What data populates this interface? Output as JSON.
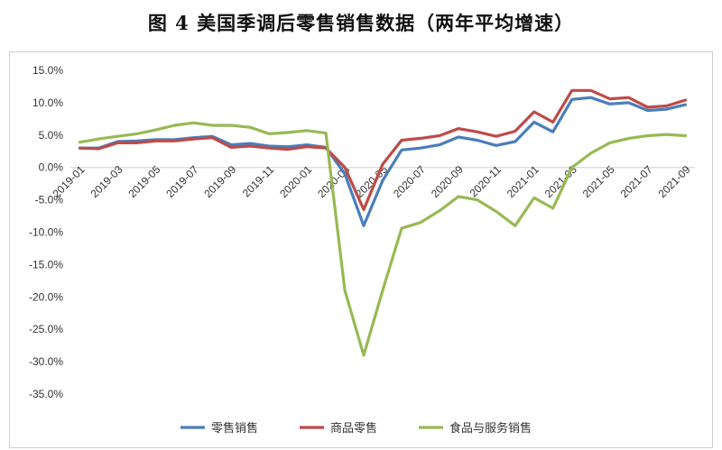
{
  "title": "图 4  美国季调后零售销售数据（两年平均增速）",
  "chart_data": {
    "type": "line",
    "title": "图 4  美国季调后零售销售数据（两年平均增速）",
    "xlabel": "",
    "ylabel": "",
    "ylim": [
      -35,
      15
    ],
    "y_ticks": [
      "15.0%",
      "10.0%",
      "5.0%",
      "0.0%",
      "-5.0%",
      "-10.0%",
      "-15.0%",
      "-20.0%",
      "-25.0%",
      "-30.0%",
      "-35.0%"
    ],
    "x": [
      "2019-01",
      "2019-02",
      "2019-03",
      "2019-04",
      "2019-05",
      "2019-06",
      "2019-07",
      "2019-08",
      "2019-09",
      "2019-10",
      "2019-11",
      "2019-12",
      "2020-01",
      "2020-02",
      "2020-03",
      "2020-04",
      "2020-05",
      "2020-06",
      "2020-07",
      "2020-08",
      "2020-09",
      "2020-10",
      "2020-11",
      "2020-12",
      "2021-01",
      "2021-02",
      "2021-03",
      "2021-04",
      "2021-05",
      "2021-06",
      "2021-07",
      "2021-08",
      "2021-09"
    ],
    "x_tick_labels": [
      "2019-01",
      "2019-03",
      "2019-05",
      "2019-07",
      "2019-09",
      "2019-11",
      "2020-01",
      "2020-03",
      "2020-05",
      "2020-07",
      "2020-09",
      "2020-11",
      "2021-01",
      "2021-03",
      "2021-05",
      "2021-07",
      "2021-09"
    ],
    "grid": false,
    "legend_position": "bottom",
    "series": [
      {
        "name": "零售销售",
        "color": "#4a7ebb",
        "values": [
          3.0,
          3.0,
          4.0,
          4.1,
          4.3,
          4.3,
          4.6,
          4.8,
          3.5,
          3.7,
          3.3,
          3.2,
          3.5,
          3.1,
          -1.0,
          -9.0,
          -2.0,
          2.7,
          3.0,
          3.5,
          4.7,
          4.2,
          3.4,
          4.0,
          7.0,
          5.5,
          10.5,
          10.8,
          9.8,
          10.0,
          8.8,
          9.0,
          9.7
        ]
      },
      {
        "name": "商品零售",
        "color": "#be4b48",
        "values": [
          3.0,
          2.9,
          3.8,
          3.8,
          4.1,
          4.1,
          4.4,
          4.6,
          3.1,
          3.3,
          3.0,
          2.8,
          3.2,
          3.0,
          0.0,
          -6.5,
          0.5,
          4.2,
          4.5,
          4.9,
          6.0,
          5.5,
          4.8,
          5.6,
          8.6,
          7.0,
          11.9,
          11.9,
          10.6,
          10.8,
          9.3,
          9.5,
          10.4
        ]
      },
      {
        "name": "食品与服务销售",
        "color": "#98b954",
        "values": [
          3.9,
          4.4,
          4.8,
          5.2,
          5.8,
          6.5,
          6.9,
          6.5,
          6.5,
          6.2,
          5.2,
          5.4,
          5.7,
          5.3,
          -19.0,
          -29.0,
          -19.0,
          -9.4,
          -8.5,
          -6.7,
          -4.5,
          -5.0,
          -6.8,
          -9.0,
          -4.7,
          -6.3,
          0.0,
          2.2,
          3.8,
          4.5,
          4.9,
          5.1,
          4.9
        ]
      }
    ]
  }
}
